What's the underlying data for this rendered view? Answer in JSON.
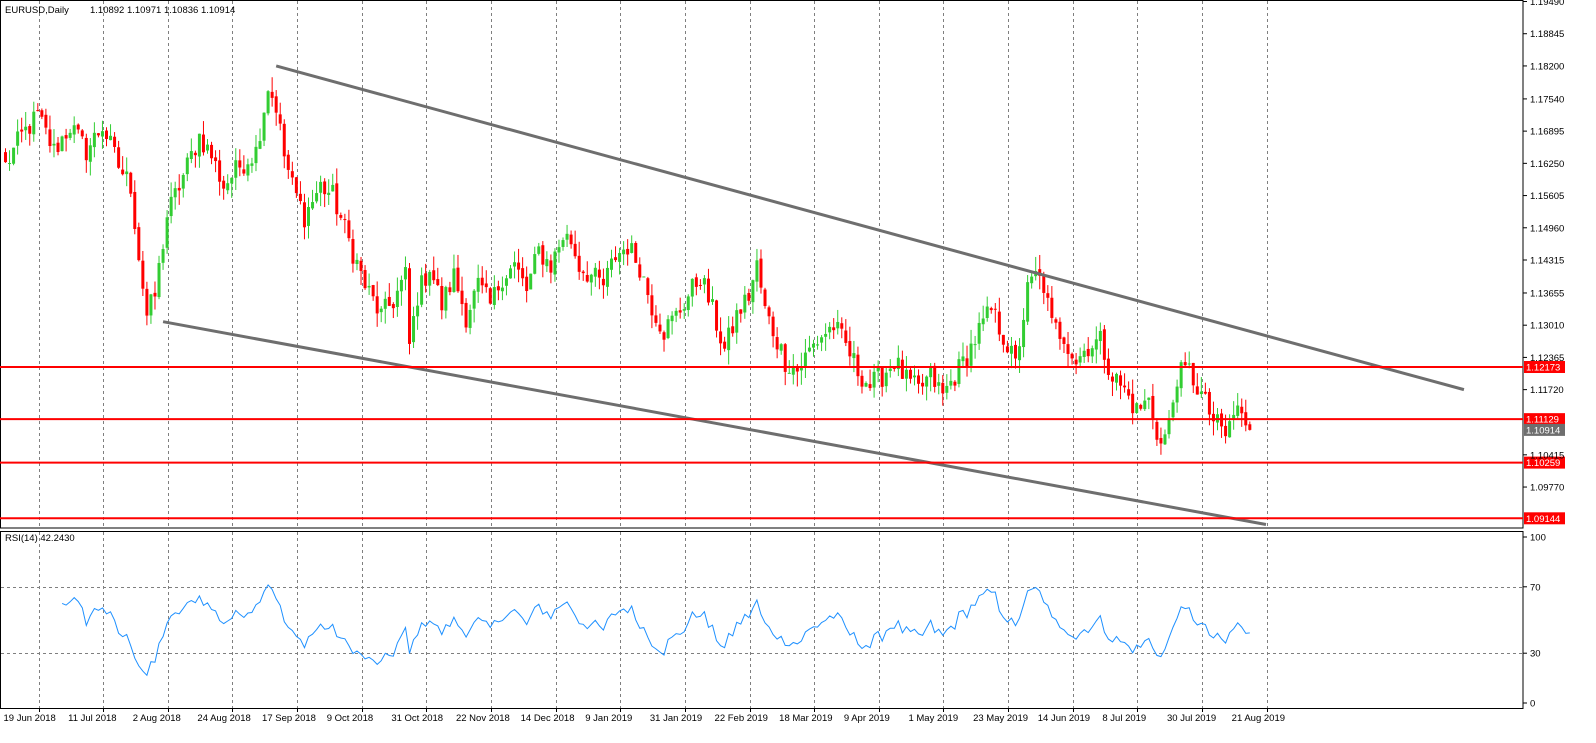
{
  "symbol_title": "EURUSD,Daily",
  "ohlc_text": "1.10892 1.10971 1.10836 1.10914",
  "rsi_title": "RSI(14) 42.2430",
  "colors": {
    "bull": "#32cd32",
    "bear": "#ff0000",
    "trendline": "#6e6e6e",
    "hline": "#ff0000",
    "rsi": "#1e90ff",
    "grid": "#7f7f7f",
    "price_label_bg": "#ff0000",
    "current_label_bg": "#6e6e6e"
  },
  "chart_data": {
    "type": "candlestick",
    "price_axis": {
      "ylim": [
        1.0895,
        1.1952
      ],
      "ticks": [
        "1.19490",
        "1.18845",
        "1.18200",
        "1.17540",
        "1.16895",
        "1.16250",
        "1.15605",
        "1.14960",
        "1.14315",
        "1.13655",
        "1.13010",
        "1.12365",
        "1.11720",
        "1.10415",
        "1.09770"
      ]
    },
    "date_ticks": [
      {
        "label": "19 Jun 2018",
        "bar": 0
      },
      {
        "label": "11 Jul 2018",
        "bar": 16
      },
      {
        "label": "2 Aug 2018",
        "bar": 32
      },
      {
        "label": "24 Aug 2018",
        "bar": 48
      },
      {
        "label": "17 Sep 2018",
        "bar": 64
      },
      {
        "label": "9 Oct 2018",
        "bar": 80
      },
      {
        "label": "31 Oct 2018",
        "bar": 96
      },
      {
        "label": "22 Nov 2018",
        "bar": 112
      },
      {
        "label": "14 Dec 2018",
        "bar": 128
      },
      {
        "label": "9 Jan 2019",
        "bar": 144
      },
      {
        "label": "31 Jan 2019",
        "bar": 160
      },
      {
        "label": "22 Feb 2019",
        "bar": 176
      },
      {
        "label": "18 Mar 2019",
        "bar": 192
      },
      {
        "label": "9 Apr 2019",
        "bar": 208
      },
      {
        "label": "1 May 2019",
        "bar": 224
      },
      {
        "label": "23 May 2019",
        "bar": 240
      },
      {
        "label": "14 Jun 2019",
        "bar": 256
      },
      {
        "label": "8 Jul 2019",
        "bar": 272
      },
      {
        "label": "30 Jul 2019",
        "bar": 288
      },
      {
        "label": "21 Aug 2019",
        "bar": 304
      }
    ],
    "close_path": [
      [
        0,
        1.162
      ],
      [
        4,
        1.168
      ],
      [
        8,
        1.172
      ],
      [
        12,
        1.165
      ],
      [
        16,
        1.17
      ],
      [
        20,
        1.165
      ],
      [
        24,
        1.17
      ],
      [
        28,
        1.162
      ],
      [
        31,
        1.158
      ],
      [
        33,
        1.144
      ],
      [
        35,
        1.132
      ],
      [
        37,
        1.136
      ],
      [
        40,
        1.152
      ],
      [
        44,
        1.16
      ],
      [
        48,
        1.168
      ],
      [
        51,
        1.164
      ],
      [
        54,
        1.158
      ],
      [
        58,
        1.162
      ],
      [
        62,
        1.165
      ],
      [
        65,
        1.178
      ],
      [
        67,
        1.174
      ],
      [
        69,
        1.164
      ],
      [
        71,
        1.158
      ],
      [
        74,
        1.152
      ],
      [
        78,
        1.158
      ],
      [
        81,
        1.156
      ],
      [
        85,
        1.147
      ],
      [
        89,
        1.138
      ],
      [
        93,
        1.132
      ],
      [
        96,
        1.135
      ],
      [
        99,
        1.14
      ],
      [
        100,
        1.126
      ],
      [
        102,
        1.136
      ],
      [
        105,
        1.142
      ],
      [
        108,
        1.134
      ],
      [
        111,
        1.14
      ],
      [
        114,
        1.132
      ],
      [
        117,
        1.138
      ],
      [
        120,
        1.134
      ],
      [
        123,
        1.14
      ],
      [
        126,
        1.142
      ],
      [
        129,
        1.137
      ],
      [
        132,
        1.145
      ],
      [
        135,
        1.142
      ],
      [
        138,
        1.148
      ],
      [
        140,
        1.147
      ],
      [
        142,
        1.142
      ],
      [
        145,
        1.14
      ],
      [
        148,
        1.138
      ],
      [
        151,
        1.144
      ],
      [
        154,
        1.146
      ],
      [
        157,
        1.142
      ],
      [
        160,
        1.134
      ],
      [
        163,
        1.129
      ],
      [
        166,
        1.132
      ],
      [
        169,
        1.136
      ],
      [
        172,
        1.14
      ],
      [
        175,
        1.133
      ],
      [
        178,
        1.125
      ],
      [
        181,
        1.132
      ],
      [
        184,
        1.136
      ],
      [
        186,
        1.142
      ],
      [
        188,
        1.133
      ],
      [
        190,
        1.129
      ],
      [
        193,
        1.123
      ],
      [
        196,
        1.121
      ],
      [
        199,
        1.125
      ],
      [
        202,
        1.128
      ],
      [
        205,
        1.13
      ],
      [
        208,
        1.126
      ],
      [
        211,
        1.121
      ],
      [
        214,
        1.118
      ],
      [
        217,
        1.12
      ],
      [
        220,
        1.123
      ],
      [
        223,
        1.119
      ],
      [
        226,
        1.117
      ],
      [
        229,
        1.12
      ],
      [
        232,
        1.116
      ],
      [
        235,
        1.12
      ],
      [
        238,
        1.124
      ],
      [
        241,
        1.129
      ],
      [
        244,
        1.133
      ],
      [
        247,
        1.128
      ],
      [
        250,
        1.122
      ],
      [
        253,
        1.137
      ],
      [
        255,
        1.14
      ],
      [
        257,
        1.138
      ],
      [
        259,
        1.13
      ],
      [
        262,
        1.128
      ],
      [
        265,
        1.123
      ],
      [
        268,
        1.126
      ],
      [
        271,
        1.127
      ],
      [
        274,
        1.12
      ],
      [
        277,
        1.117
      ],
      [
        280,
        1.113
      ],
      [
        283,
        1.115
      ],
      [
        286,
        1.106
      ],
      [
        288,
        1.11
      ],
      [
        290,
        1.12
      ],
      [
        293,
        1.121
      ],
      [
        296,
        1.116
      ],
      [
        299,
        1.111
      ],
      [
        302,
        1.108
      ],
      [
        305,
        1.114
      ],
      [
        307,
        1.109
      ],
      [
        308,
        1.10914
      ]
    ],
    "trendlines": [
      {
        "x": [
          67,
          361
        ],
        "y": [
          1.182,
          1.1172
        ]
      },
      {
        "x": [
          39,
          312
        ],
        "y": [
          1.1308,
          1.0902
        ]
      }
    ],
    "horizontal_lines": [
      {
        "value": 1.12173,
        "label": "1.12173"
      },
      {
        "value": 1.11129,
        "label": "1.11129"
      },
      {
        "value": 1.10259,
        "label": "1.10259"
      },
      {
        "value": 1.09144,
        "label": "1.09144"
      }
    ],
    "current_price": {
      "value": 1.10914,
      "label": "1.10914"
    },
    "rsi": {
      "ylim": [
        0,
        100
      ],
      "ticks": [
        "100",
        "70",
        "30",
        "0"
      ],
      "levels": [
        30,
        70
      ],
      "last_value": 42.243
    }
  }
}
